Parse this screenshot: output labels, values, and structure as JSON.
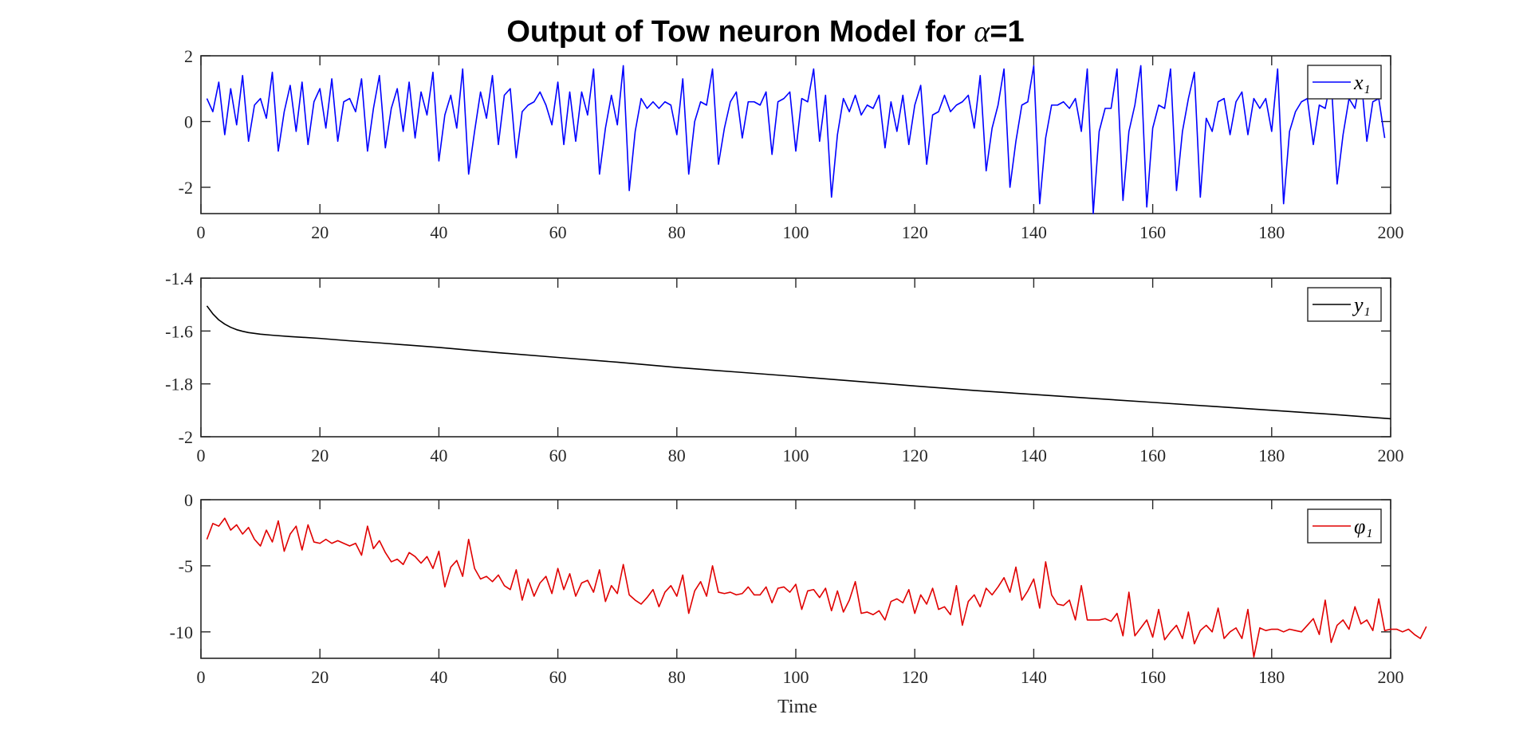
{
  "title_prefix": "Output of Tow neuron Model for ",
  "title_symbol": "α",
  "title_suffix": "=1",
  "xlabel": "Time",
  "chart_data": [
    {
      "type": "line",
      "id": "x1",
      "legend": "x₁",
      "color": "#0000ff",
      "xlim": [
        0,
        200
      ],
      "ylim": [
        -2.8,
        2
      ],
      "xticks": [
        0,
        20,
        40,
        60,
        80,
        100,
        120,
        140,
        160,
        180,
        200
      ],
      "xtick_labels": [
        "0",
        "20",
        "40",
        "60",
        "80",
        "100",
        "120",
        "140",
        "160",
        "180",
        "200"
      ],
      "yticks": [
        2,
        0,
        -2
      ],
      "ytick_labels": [
        "2",
        "0",
        "-2"
      ],
      "legend_position": "top-right",
      "x_start": 1,
      "x_step": 1,
      "values": [
        0.7,
        0.3,
        1.2,
        -0.4,
        1.0,
        -0.1,
        1.4,
        -0.6,
        0.5,
        0.7,
        0.1,
        1.5,
        -0.9,
        0.3,
        1.1,
        -0.3,
        1.2,
        -0.7,
        0.6,
        1.0,
        -0.2,
        1.3,
        -0.6,
        0.6,
        0.7,
        0.3,
        1.3,
        -0.9,
        0.4,
        1.4,
        -0.8,
        0.4,
        1.0,
        -0.3,
        1.2,
        -0.5,
        0.9,
        0.2,
        1.5,
        -1.2,
        0.2,
        0.8,
        -0.2,
        1.6,
        -1.6,
        -0.3,
        0.9,
        0.1,
        1.4,
        -0.7,
        0.8,
        1.0,
        -1.1,
        0.3,
        0.5,
        0.6,
        0.9,
        0.5,
        -0.1,
        1.2,
        -0.7,
        0.9,
        -0.6,
        0.9,
        0.2,
        1.6,
        -1.6,
        -0.2,
        0.8,
        -0.1,
        1.7,
        -2.1,
        -0.3,
        0.7,
        0.4,
        0.6,
        0.4,
        0.6,
        0.5,
        -0.4,
        1.3,
        -1.6,
        0.0,
        0.6,
        0.5,
        1.6,
        -1.3,
        -0.2,
        0.6,
        0.9,
        -0.5,
        0.6,
        0.6,
        0.5,
        0.9,
        -1.0,
        0.6,
        0.7,
        0.9,
        -0.9,
        0.7,
        0.6,
        1.6,
        -0.6,
        0.8,
        -2.3,
        -0.4,
        0.7,
        0.3,
        0.8,
        0.2,
        0.5,
        0.4,
        0.8,
        -0.8,
        0.6,
        -0.3,
        0.8,
        -0.7,
        0.5,
        1.1,
        -1.3,
        0.2,
        0.3,
        0.8,
        0.3,
        0.5,
        0.6,
        0.8,
        -0.2,
        1.4,
        -1.5,
        -0.2,
        0.5,
        1.6,
        -2.0,
        -0.6,
        0.5,
        0.6,
        1.7,
        -2.5,
        -0.5,
        0.5,
        0.5,
        0.6,
        0.4,
        0.7,
        -0.3,
        1.6,
        -2.8,
        -0.3,
        0.4,
        0.4,
        1.6,
        -2.4,
        -0.3,
        0.5,
        1.7,
        -2.6,
        -0.2,
        0.5,
        0.4,
        1.6,
        -2.1,
        -0.3,
        0.7,
        1.5,
        -2.3,
        0.1,
        -0.3,
        0.6,
        0.7,
        -0.4,
        0.6,
        0.9,
        -0.4,
        0.7,
        0.4,
        0.7,
        -0.3,
        1.6,
        -2.5,
        -0.3,
        0.3,
        0.6,
        0.7,
        -0.7,
        0.5,
        0.4,
        1.3,
        -1.9,
        -0.4,
        0.7,
        0.4,
        1.4,
        -0.6,
        0.6,
        0.7,
        -0.5
      ]
    },
    {
      "type": "line",
      "id": "y1",
      "legend": "y₁",
      "color": "#000000",
      "xlim": [
        0,
        200
      ],
      "ylim": [
        -2,
        -1.4
      ],
      "xticks": [
        0,
        20,
        40,
        60,
        80,
        100,
        120,
        140,
        160,
        180,
        200
      ],
      "xtick_labels": [
        "0",
        "20",
        "40",
        "60",
        "80",
        "100",
        "120",
        "140",
        "160",
        "180",
        "200"
      ],
      "yticks": [
        -1.4,
        -1.6,
        -1.8,
        -2
      ],
      "ytick_labels": [
        "-1.4",
        "-1.6",
        "-1.8",
        "-2"
      ],
      "legend_position": "top-right",
      "x": [
        1,
        2,
        3,
        4,
        5,
        6,
        7,
        8,
        10,
        12,
        15,
        20,
        25,
        30,
        40,
        50,
        60,
        70,
        80,
        90,
        100,
        110,
        120,
        130,
        140,
        150,
        160,
        170,
        180,
        190,
        200
      ],
      "values": [
        -1.505,
        -1.535,
        -1.558,
        -1.574,
        -1.586,
        -1.595,
        -1.601,
        -1.606,
        -1.612,
        -1.616,
        -1.621,
        -1.628,
        -1.637,
        -1.645,
        -1.662,
        -1.682,
        -1.7,
        -1.718,
        -1.738,
        -1.755,
        -1.772,
        -1.79,
        -1.808,
        -1.825,
        -1.84,
        -1.855,
        -1.87,
        -1.885,
        -1.9,
        -1.915,
        -1.932
      ]
    },
    {
      "type": "line",
      "id": "phi1",
      "legend": "φ₁",
      "color": "#e00000",
      "xlim": [
        0,
        200
      ],
      "ylim": [
        -12,
        0
      ],
      "xticks": [
        0,
        20,
        40,
        60,
        80,
        100,
        120,
        140,
        160,
        180,
        200
      ],
      "xtick_labels": [
        "0",
        "20",
        "40",
        "60",
        "80",
        "100",
        "120",
        "140",
        "160",
        "180",
        "200"
      ],
      "yticks": [
        0,
        -5,
        -10
      ],
      "ytick_labels": [
        "0",
        "-5",
        "-10"
      ],
      "legend_position": "top-right",
      "x_start": 1,
      "x_step": 1,
      "values": [
        -3.0,
        -1.8,
        -2.0,
        -1.4,
        -2.3,
        -1.9,
        -2.6,
        -2.1,
        -3.0,
        -3.5,
        -2.3,
        -3.2,
        -1.6,
        -3.9,
        -2.6,
        -2.0,
        -3.8,
        -1.9,
        -3.2,
        -3.3,
        -3.0,
        -3.3,
        -3.1,
        -3.3,
        -3.5,
        -3.3,
        -4.2,
        -2.0,
        -3.7,
        -3.1,
        -4.0,
        -4.7,
        -4.5,
        -4.9,
        -4.0,
        -4.3,
        -4.8,
        -4.3,
        -5.2,
        -3.9,
        -6.6,
        -5.1,
        -4.6,
        -5.8,
        -3.0,
        -5.2,
        -6.0,
        -5.8,
        -6.2,
        -5.7,
        -6.5,
        -6.8,
        -5.3,
        -7.6,
        -6.0,
        -7.3,
        -6.3,
        -5.8,
        -7.1,
        -5.2,
        -6.8,
        -5.6,
        -7.3,
        -6.3,
        -6.1,
        -7.0,
        -5.3,
        -7.7,
        -6.5,
        -7.1,
        -4.9,
        -7.2,
        -7.6,
        -7.9,
        -7.4,
        -6.8,
        -8.1,
        -7.0,
        -6.5,
        -7.3,
        -5.7,
        -8.6,
        -6.9,
        -6.2,
        -7.3,
        -5.0,
        -7.0,
        -7.1,
        -7.0,
        -7.2,
        -7.1,
        -6.6,
        -7.2,
        -7.2,
        -6.6,
        -7.8,
        -6.7,
        -6.6,
        -7.0,
        -6.4,
        -8.3,
        -6.9,
        -6.8,
        -7.4,
        -6.7,
        -8.4,
        -6.9,
        -8.5,
        -7.6,
        -6.2,
        -8.6,
        -8.5,
        -8.7,
        -8.4,
        -9.1,
        -7.7,
        -7.5,
        -7.8,
        -6.8,
        -8.6,
        -7.2,
        -7.9,
        -6.7,
        -8.3,
        -8.1,
        -8.7,
        -6.5,
        -9.5,
        -7.7,
        -7.2,
        -8.1,
        -6.7,
        -7.2,
        -6.6,
        -5.9,
        -7.0,
        -5.1,
        -7.6,
        -6.9,
        -6.0,
        -8.2,
        -4.7,
        -7.2,
        -7.9,
        -8.0,
        -7.6,
        -9.1,
        -6.5,
        -9.1,
        -9.1,
        -9.1,
        -9.0,
        -9.2,
        -8.6,
        -10.3,
        -7.0,
        -10.3,
        -9.7,
        -9.1,
        -10.4,
        -8.3,
        -10.6,
        -10.0,
        -9.5,
        -10.5,
        -8.5,
        -10.9,
        -9.9,
        -9.5,
        -10.0,
        -8.2,
        -10.5,
        -10.0,
        -9.7,
        -10.5,
        -8.3,
        -11.9,
        -9.7,
        -9.9,
        -9.8,
        -9.8,
        -10.0,
        -9.8,
        -9.9,
        -10.0,
        -9.5,
        -9.0,
        -10.2,
        -7.6,
        -10.8,
        -9.5,
        -9.1,
        -9.8,
        -8.1,
        -9.4,
        -9.1,
        -9.9,
        -7.5,
        -9.9,
        -9.8,
        -9.8,
        -10.0,
        -9.8,
        -10.2,
        -10.5,
        -9.6
      ]
    }
  ]
}
